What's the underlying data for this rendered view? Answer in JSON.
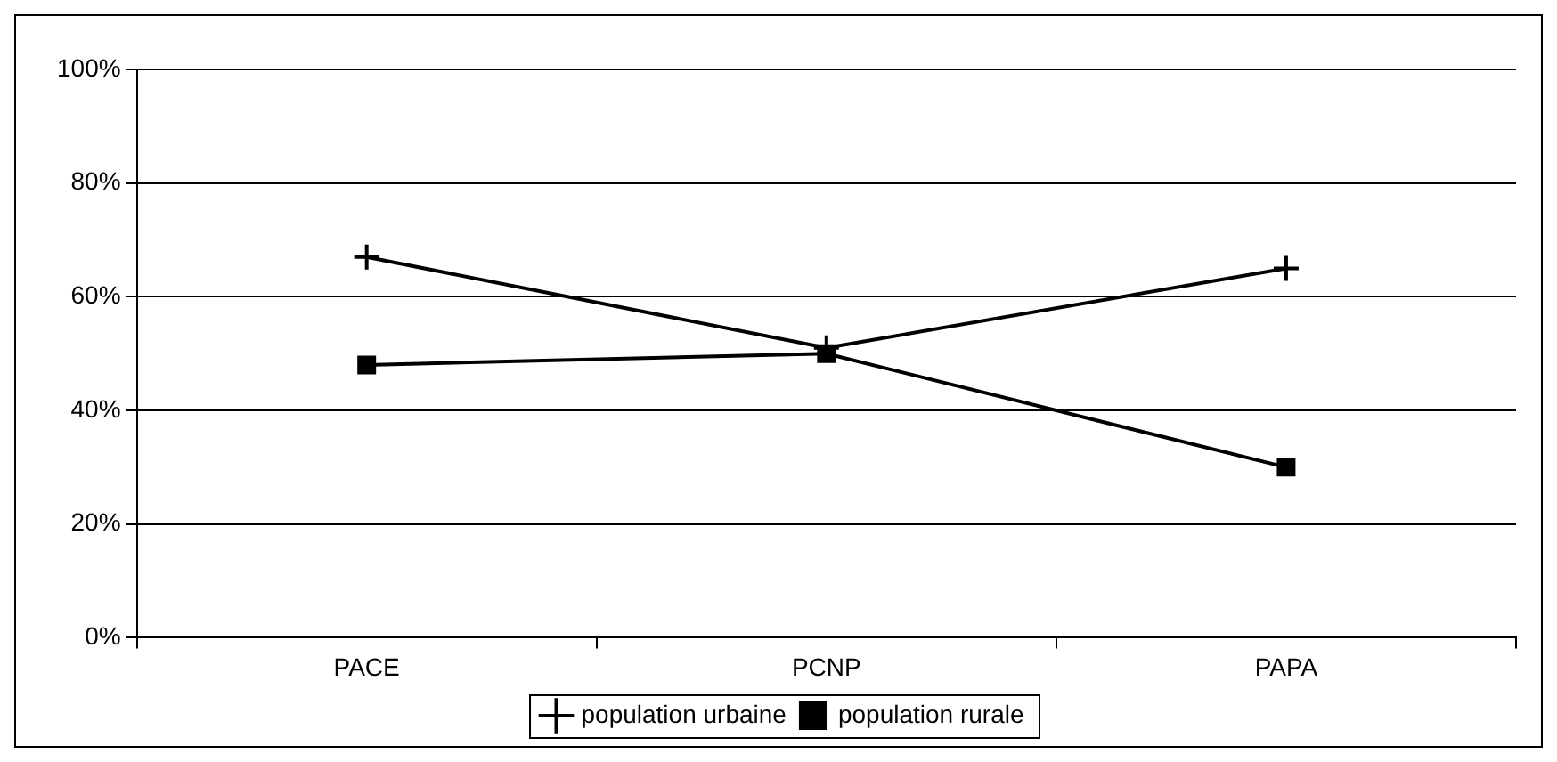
{
  "chart_data": {
    "type": "line",
    "categories": [
      "PACE",
      "PCNP",
      "PAPA"
    ],
    "series": [
      {
        "name": "population urbaine",
        "color": "#000000",
        "marker": "cross",
        "values": [
          67,
          51,
          65
        ]
      },
      {
        "name": "population rurale",
        "color": "#000000",
        "marker": "square",
        "values": [
          48,
          50,
          30
        ]
      }
    ],
    "ylim": [
      0,
      100
    ],
    "yticks": [
      {
        "value": 0,
        "label": "0%"
      },
      {
        "value": 20,
        "label": "20%"
      },
      {
        "value": 40,
        "label": "40%"
      },
      {
        "value": 60,
        "label": "60%"
      },
      {
        "value": 80,
        "label": "80%"
      },
      {
        "value": 100,
        "label": "100%"
      }
    ],
    "grid": "y",
    "legend": "bottom",
    "line_style": "solid"
  }
}
